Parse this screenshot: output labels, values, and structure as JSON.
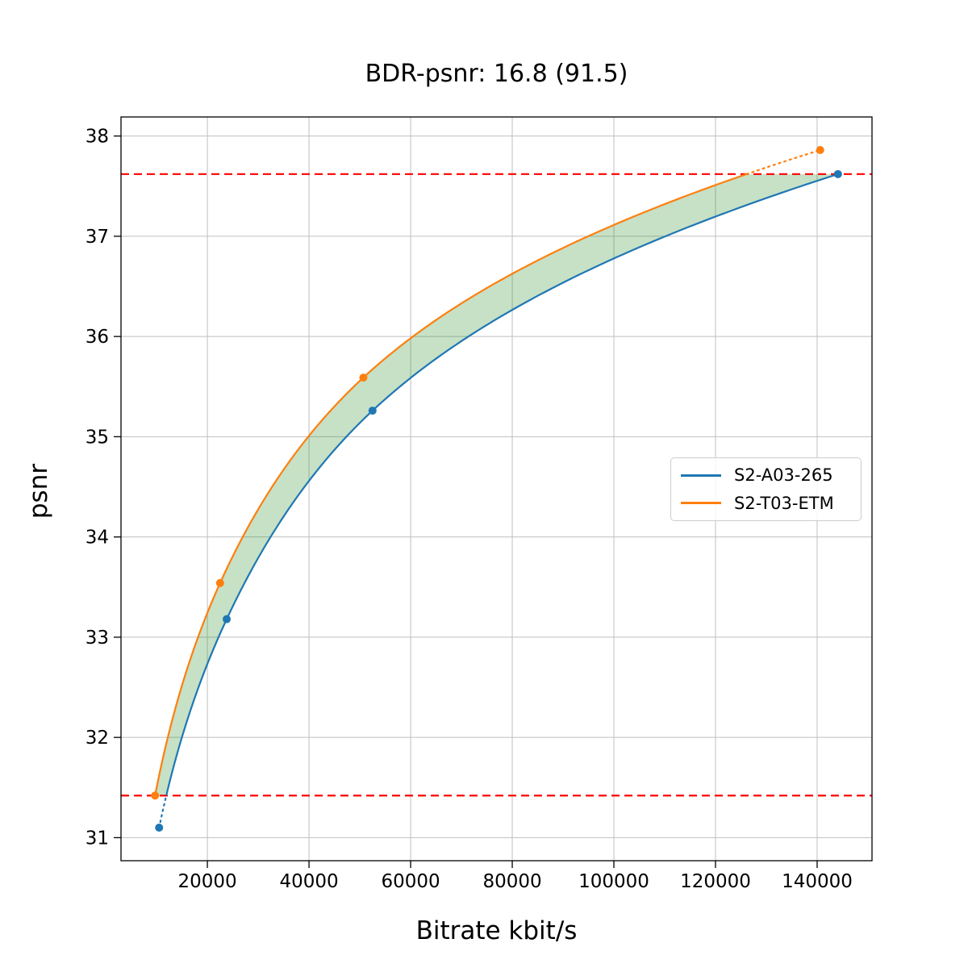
{
  "title": "BDR-psnr: 16.8 (91.5)",
  "xlabel": "Bitrate kbit/s",
  "ylabel": "psnr",
  "legend": {
    "items": [
      {
        "label": "S2-A03-265",
        "color": "#1f77b4"
      },
      {
        "label": "S2-T03-ETM",
        "color": "#ff7f0e"
      }
    ]
  },
  "chart_data": {
    "type": "line",
    "title": "BDR-psnr: 16.8 (91.5)",
    "xlabel": "Bitrate kbit/s",
    "ylabel": "psnr",
    "xlim": [
      3000,
      150800
    ],
    "ylim": [
      30.77,
      38.19
    ],
    "xticks": [
      20000,
      40000,
      60000,
      80000,
      100000,
      120000,
      140000
    ],
    "yticks": [
      31,
      32,
      33,
      34,
      35,
      36,
      37,
      38
    ],
    "grid": true,
    "grid_color": "#bfbfbf",
    "legend_position": "center-right",
    "interpolation": "pchip-log-x",
    "series": [
      {
        "name": "S2-A03-265",
        "color": "#1f77b4",
        "points": [
          [
            10500,
            31.1
          ],
          [
            23800,
            33.18
          ],
          [
            52500,
            35.26
          ],
          [
            144100,
            37.62
          ]
        ]
      },
      {
        "name": "S2-T03-ETM",
        "color": "#ff7f0e",
        "points": [
          [
            9700,
            31.42
          ],
          [
            22500,
            33.54
          ],
          [
            50700,
            35.59
          ],
          [
            140600,
            37.86
          ]
        ]
      }
    ],
    "bd_bounds": {
      "low_psnr": 31.42,
      "high_psnr": 37.62,
      "line_color": "#ff0000",
      "line_style": "dashed"
    },
    "fill_between": {
      "color": "#228b22",
      "opacity": 0.26
    }
  }
}
